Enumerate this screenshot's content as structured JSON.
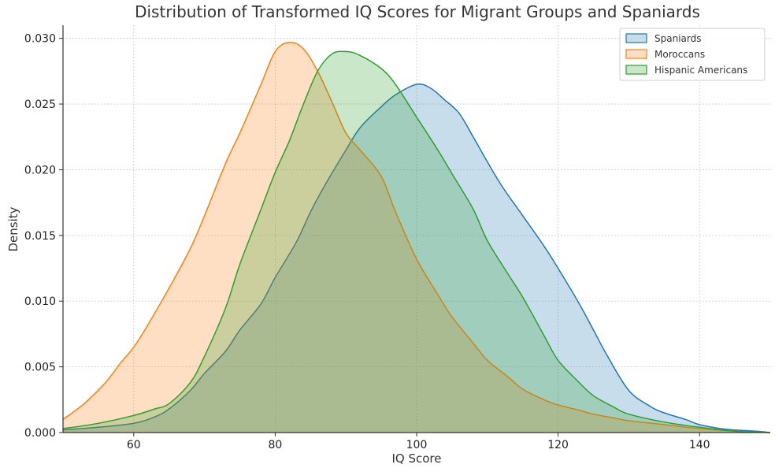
{
  "chart_data": {
    "type": "area",
    "title": "Distribution of Transformed IQ Scores for Migrant Groups and Spaniards",
    "xlabel": "IQ Score",
    "ylabel": "Density",
    "xlim": [
      50,
      150
    ],
    "ylim": [
      0,
      0.031
    ],
    "xticks": [
      {
        "value": 60,
        "label": "60"
      },
      {
        "value": 80,
        "label": "80"
      },
      {
        "value": 100,
        "label": "100"
      },
      {
        "value": 120,
        "label": "120"
      },
      {
        "value": 140,
        "label": "140"
      }
    ],
    "yticks": [
      {
        "value": 0,
        "label": "0.000"
      },
      {
        "value": 0.005,
        "label": "0.005"
      },
      {
        "value": 0.01,
        "label": "0.010"
      },
      {
        "value": 0.015,
        "label": "0.015"
      },
      {
        "value": 0.02,
        "label": "0.020"
      },
      {
        "value": 0.025,
        "label": "0.025"
      },
      {
        "value": 0.03,
        "label": "0.030"
      }
    ],
    "grid": true,
    "legend_position": "top-right",
    "series": [
      {
        "name": "Spaniards",
        "color": "#1f77b4",
        "x": [
          50,
          55,
          60,
          63,
          65,
          68,
          70,
          73,
          75,
          78,
          80,
          83,
          85,
          87,
          90,
          92,
          95,
          97,
          100,
          102,
          104,
          106,
          108,
          110,
          112,
          115,
          118,
          120,
          123,
          125,
          127,
          130,
          133,
          135,
          138,
          140,
          143,
          145,
          148,
          150
        ],
        "y": [
          0.0002,
          0.0004,
          0.0007,
          0.0012,
          0.0018,
          0.0032,
          0.0045,
          0.0062,
          0.0078,
          0.0098,
          0.0118,
          0.0145,
          0.0168,
          0.0188,
          0.0215,
          0.0232,
          0.0248,
          0.0257,
          0.0265,
          0.0262,
          0.0253,
          0.0243,
          0.0225,
          0.0206,
          0.0188,
          0.0165,
          0.0142,
          0.0125,
          0.0098,
          0.0078,
          0.0058,
          0.0032,
          0.002,
          0.0015,
          0.001,
          0.0006,
          0.0003,
          0.0002,
          0.0001,
          0.0
        ]
      },
      {
        "name": "Moroccans",
        "color": "#ff7f0e",
        "x": [
          50,
          53,
          56,
          58,
          60,
          62,
          65,
          68,
          70,
          73,
          75,
          78,
          80,
          82,
          84,
          86,
          88,
          90,
          92,
          95,
          97,
          100,
          103,
          105,
          108,
          110,
          113,
          115,
          118,
          120,
          123,
          125,
          128,
          130,
          135,
          140,
          145,
          150
        ],
        "y": [
          0.001,
          0.0022,
          0.0038,
          0.0052,
          0.0065,
          0.0082,
          0.011,
          0.014,
          0.0165,
          0.0205,
          0.0228,
          0.0265,
          0.029,
          0.0297,
          0.0292,
          0.0275,
          0.0252,
          0.0228,
          0.0215,
          0.0195,
          0.0168,
          0.0132,
          0.0105,
          0.0088,
          0.0068,
          0.0055,
          0.0042,
          0.0033,
          0.0025,
          0.0021,
          0.0017,
          0.0014,
          0.0011,
          0.0009,
          0.0006,
          0.0003,
          0.0001,
          0.0
        ]
      },
      {
        "name": "Hispanic Americans",
        "color": "#2ca02c",
        "x": [
          50,
          55,
          60,
          63,
          65,
          68,
          70,
          73,
          75,
          78,
          80,
          82,
          84,
          86,
          88,
          90,
          92,
          95,
          97,
          100,
          103,
          105,
          108,
          110,
          113,
          115,
          118,
          120,
          123,
          125,
          128,
          130,
          135,
          140,
          145,
          150
        ],
        "y": [
          0.0003,
          0.0007,
          0.0013,
          0.0018,
          0.0022,
          0.0038,
          0.0058,
          0.0095,
          0.0128,
          0.017,
          0.0198,
          0.0222,
          0.025,
          0.0275,
          0.0288,
          0.029,
          0.0287,
          0.0277,
          0.0265,
          0.024,
          0.0215,
          0.0197,
          0.017,
          0.0146,
          0.012,
          0.0103,
          0.0074,
          0.0055,
          0.0038,
          0.0028,
          0.0019,
          0.0014,
          0.0008,
          0.0004,
          0.0001,
          0.0
        ]
      }
    ]
  }
}
